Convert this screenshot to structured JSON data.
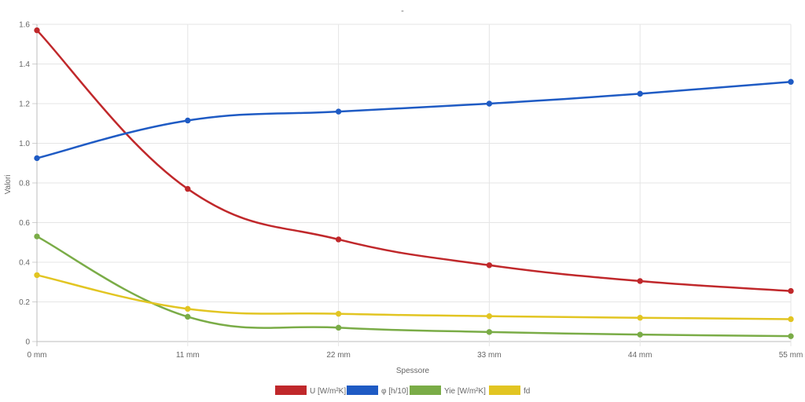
{
  "chart_data": {
    "type": "line",
    "title": "-",
    "xlabel": "Spessore",
    "ylabel": "Valori",
    "categories": [
      "0 mm",
      "11 mm",
      "22 mm",
      "33 mm",
      "44 mm",
      "55 mm"
    ],
    "ylim": [
      0,
      1.6
    ],
    "yticks": [
      "0",
      "0.2",
      "0.4",
      "0.6",
      "0.8",
      "1.0",
      "1.2",
      "1.4",
      "1.6"
    ],
    "grid": true,
    "legend_position": "bottom",
    "series": [
      {
        "name": "U [W/m²K]",
        "color": "#c0282b",
        "values": [
          1.57,
          0.77,
          0.515,
          0.385,
          0.305,
          0.255
        ]
      },
      {
        "name": "φ [h/10]",
        "color": "#1f5bc4",
        "values": [
          0.925,
          1.115,
          1.16,
          1.2,
          1.25,
          1.31
        ]
      },
      {
        "name": "Yie [W/m²K]",
        "color": "#7aac47",
        "values": [
          0.53,
          0.125,
          0.07,
          0.048,
          0.035,
          0.027
        ]
      },
      {
        "name": "fd",
        "color": "#e2c522",
        "values": [
          0.335,
          0.165,
          0.14,
          0.128,
          0.12,
          0.113
        ]
      }
    ]
  }
}
